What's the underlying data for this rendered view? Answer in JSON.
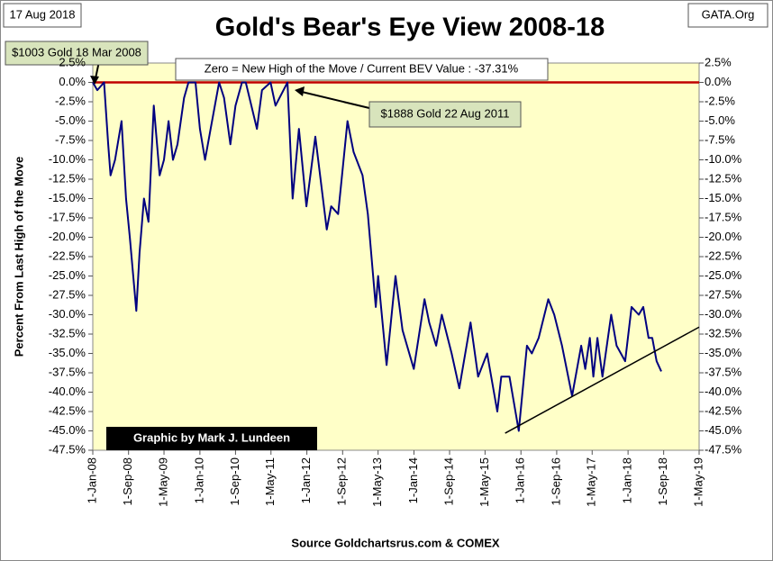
{
  "chart_data": {
    "type": "line",
    "title": "Gold's Bear's Eye View 2008-18",
    "date_note": "17 Aug 2018",
    "site": "GATA.Org",
    "y_label": "Percent  From Last High of the Move",
    "x_label": "Source Goldchartsrus.com & COMEX",
    "annotations": [
      "$1003 Gold 18 Mar 2008",
      "Zero = New High of the Move / Current  BEV Value : -37.31%",
      "$1888 Gold 22 Aug 2011",
      "Graphic by Mark J. Lundeen"
    ],
    "xlim": [
      "2008-01-01",
      "2019-05-01"
    ],
    "xticks": [
      {
        "value": "2008-01-01",
        "label": "1-Jan-08"
      },
      {
        "value": "2008-09-01",
        "label": "1-Sep-08"
      },
      {
        "value": "2009-05-01",
        "label": "1-May-09"
      },
      {
        "value": "2010-01-01",
        "label": "1-Jan-10"
      },
      {
        "value": "2010-09-01",
        "label": "1-Sep-10"
      },
      {
        "value": "2011-05-01",
        "label": "1-May-11"
      },
      {
        "value": "2012-01-01",
        "label": "1-Jan-12"
      },
      {
        "value": "2012-09-01",
        "label": "1-Sep-12"
      },
      {
        "value": "2013-05-01",
        "label": "1-May-13"
      },
      {
        "value": "2014-01-01",
        "label": "1-Jan-14"
      },
      {
        "value": "2014-09-01",
        "label": "1-Sep-14"
      },
      {
        "value": "2015-05-01",
        "label": "1-May-15"
      },
      {
        "value": "2016-01-01",
        "label": "1-Jan-16"
      },
      {
        "value": "2016-09-01",
        "label": "1-Sep-16"
      },
      {
        "value": "2017-05-01",
        "label": "1-May-17"
      },
      {
        "value": "2018-01-01",
        "label": "1-Jan-18"
      },
      {
        "value": "2018-09-01",
        "label": "1-Sep-18"
      },
      {
        "value": "2019-05-01",
        "label": "1-May-19"
      }
    ],
    "ylim": [
      -47.5,
      2.5
    ],
    "yticks": [
      {
        "value": 2.5,
        "label": "2.5%"
      },
      {
        "value": 0,
        "label": "0.0%"
      },
      {
        "value": -2.5,
        "label": "-2.5%"
      },
      {
        "value": -5,
        "label": "-5.0%"
      },
      {
        "value": -7.5,
        "label": "-7.5%"
      },
      {
        "value": -10,
        "label": "-10.0%"
      },
      {
        "value": -12.5,
        "label": "-12.5%"
      },
      {
        "value": -15,
        "label": "-15.0%"
      },
      {
        "value": -17.5,
        "label": "-17.5%"
      },
      {
        "value": -20,
        "label": "-20.0%"
      },
      {
        "value": -22.5,
        "label": "-22.5%"
      },
      {
        "value": -25,
        "label": "-25.0%"
      },
      {
        "value": -27.5,
        "label": "-27.5%"
      },
      {
        "value": -30,
        "label": "-30.0%"
      },
      {
        "value": -32.5,
        "label": "-32.5%"
      },
      {
        "value": -35,
        "label": "-35.0%"
      },
      {
        "value": -37.5,
        "label": "-37.5%"
      },
      {
        "value": -40,
        "label": "-40.0%"
      },
      {
        "value": -42.5,
        "label": "-42.5%"
      },
      {
        "value": -45,
        "label": "-45.0%"
      },
      {
        "value": -47.5,
        "label": "-47.5%"
      }
    ],
    "zero_line_color": "#c00000",
    "x": [
      "2008-01-01",
      "2008-02-01",
      "2008-03-18",
      "2008-04-15",
      "2008-05-01",
      "2008-06-01",
      "2008-07-15",
      "2008-08-15",
      "2008-09-10",
      "2008-10-24",
      "2008-11-15",
      "2008-12-15",
      "2009-01-15",
      "2009-02-20",
      "2009-04-01",
      "2009-05-01",
      "2009-06-01",
      "2009-07-01",
      "2009-08-01",
      "2009-09-15",
      "2009-10-15",
      "2009-12-02",
      "2010-01-01",
      "2010-02-05",
      "2010-03-15",
      "2010-05-12",
      "2010-06-15",
      "2010-07-28",
      "2010-09-01",
      "2010-10-15",
      "2010-11-10",
      "2011-01-25",
      "2011-03-01",
      "2011-04-28",
      "2011-06-01",
      "2011-08-22",
      "2011-09-26",
      "2011-11-08",
      "2011-12-29",
      "2012-02-28",
      "2012-05-16",
      "2012-06-15",
      "2012-08-01",
      "2012-10-04",
      "2012-11-15",
      "2013-01-15",
      "2013-02-20",
      "2013-04-15",
      "2013-05-01",
      "2013-06-28",
      "2013-08-28",
      "2013-10-15",
      "2013-12-31",
      "2014-03-14",
      "2014-04-15",
      "2014-06-01",
      "2014-07-10",
      "2014-09-15",
      "2014-11-06",
      "2015-01-22",
      "2015-03-15",
      "2015-05-15",
      "2015-07-24",
      "2015-08-20",
      "2015-10-15",
      "2015-12-17",
      "2016-02-11",
      "2016-03-15",
      "2016-05-01",
      "2016-07-06",
      "2016-08-15",
      "2016-10-07",
      "2016-12-15",
      "2017-02-15",
      "2017-03-15",
      "2017-04-15",
      "2017-05-09",
      "2017-06-06",
      "2017-07-10",
      "2017-09-08",
      "2017-10-15",
      "2017-12-12",
      "2018-01-25",
      "2018-03-15",
      "2018-04-15",
      "2018-05-21",
      "2018-06-15",
      "2018-07-15",
      "2018-08-16"
    ],
    "series": [
      {
        "name": "BEV",
        "color": "#000080",
        "values": [
          0,
          -1,
          0,
          -8,
          -12,
          -10,
          -5,
          -15,
          -20,
          -29.5,
          -22,
          -15,
          -18,
          -3,
          -12,
          -10,
          -5,
          -10,
          -8,
          -2,
          0,
          0,
          -6,
          -10,
          -6,
          0,
          -2,
          -8,
          -3,
          0,
          0,
          -6,
          -1,
          0,
          -3,
          0,
          -15,
          -6,
          -16,
          -7,
          -19,
          -16,
          -17,
          -5,
          -9,
          -12,
          -17,
          -29,
          -25,
          -36.5,
          -25,
          -32,
          -37,
          -28,
          -31,
          -34,
          -30,
          -35,
          -39.5,
          -31,
          -38,
          -35,
          -42.5,
          -38,
          -38,
          -45,
          -34,
          -35,
          -33,
          -28,
          -30,
          -34,
          -40.5,
          -34,
          -37,
          -33,
          -38,
          -33,
          -38,
          -30,
          -34,
          -36,
          -29,
          -30,
          -29,
          -33,
          -33,
          -36,
          -37.31
        ]
      }
    ],
    "trend": {
      "x": [
        "2015-09-15",
        "2019-05-01"
      ],
      "values": [
        -45.3,
        -31.6
      ]
    }
  }
}
